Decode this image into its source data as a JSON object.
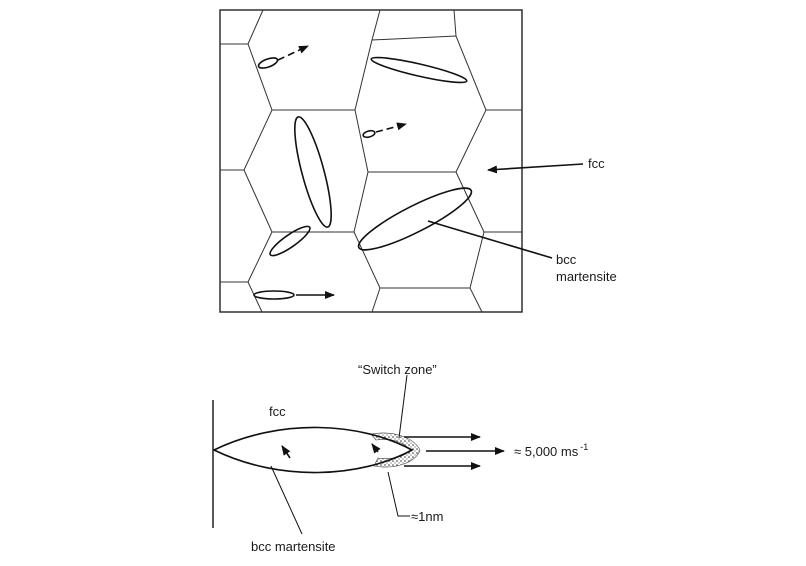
{
  "figure": {
    "top_panel": {
      "labels": {
        "fcc": "fcc",
        "bcc_line1": "bcc",
        "bcc_line2": "martensite"
      }
    },
    "bottom_panel": {
      "labels": {
        "switch_zone": "“Switch zone”",
        "fcc": "fcc",
        "velocity": "≈ 5,000 ms",
        "velocity_exp": "-1",
        "thickness": "≈1nm",
        "bcc_martensite": "bcc martensite"
      }
    }
  }
}
